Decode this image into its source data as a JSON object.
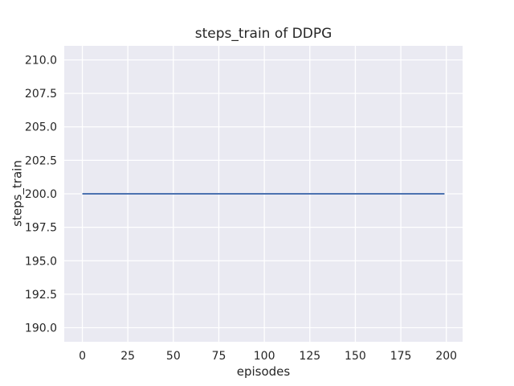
{
  "figure": {
    "background_color": "#ffffff"
  },
  "chart_data": {
    "type": "line",
    "title": "steps_train of DDPG",
    "xlabel": "episodes",
    "ylabel": "steps_train",
    "grid": true,
    "legend": false,
    "plot_background_color": "#eaeaf2",
    "grid_color": "#ffffff",
    "text_color": "#262626",
    "xlim": [
      -9.95,
      208.95
    ],
    "ylim": [
      188.95,
      211.05
    ],
    "xticks": [
      0,
      25,
      50,
      75,
      100,
      125,
      150,
      175,
      200
    ],
    "xtick_labels": [
      "0",
      "25",
      "50",
      "75",
      "100",
      "125",
      "150",
      "175",
      "200"
    ],
    "yticks": [
      190.0,
      192.5,
      195.0,
      197.5,
      200.0,
      202.5,
      205.0,
      207.5,
      210.0
    ],
    "ytick_labels": [
      "190.0",
      "192.5",
      "195.0",
      "197.5",
      "200.0",
      "202.5",
      "205.0",
      "207.5",
      "210.0"
    ],
    "series": [
      {
        "name": "steps_train",
        "color": "#4c72b0",
        "line_width": 2,
        "constant_value": 200,
        "x": [
          0,
          199
        ],
        "y": [
          200,
          200
        ]
      }
    ]
  }
}
